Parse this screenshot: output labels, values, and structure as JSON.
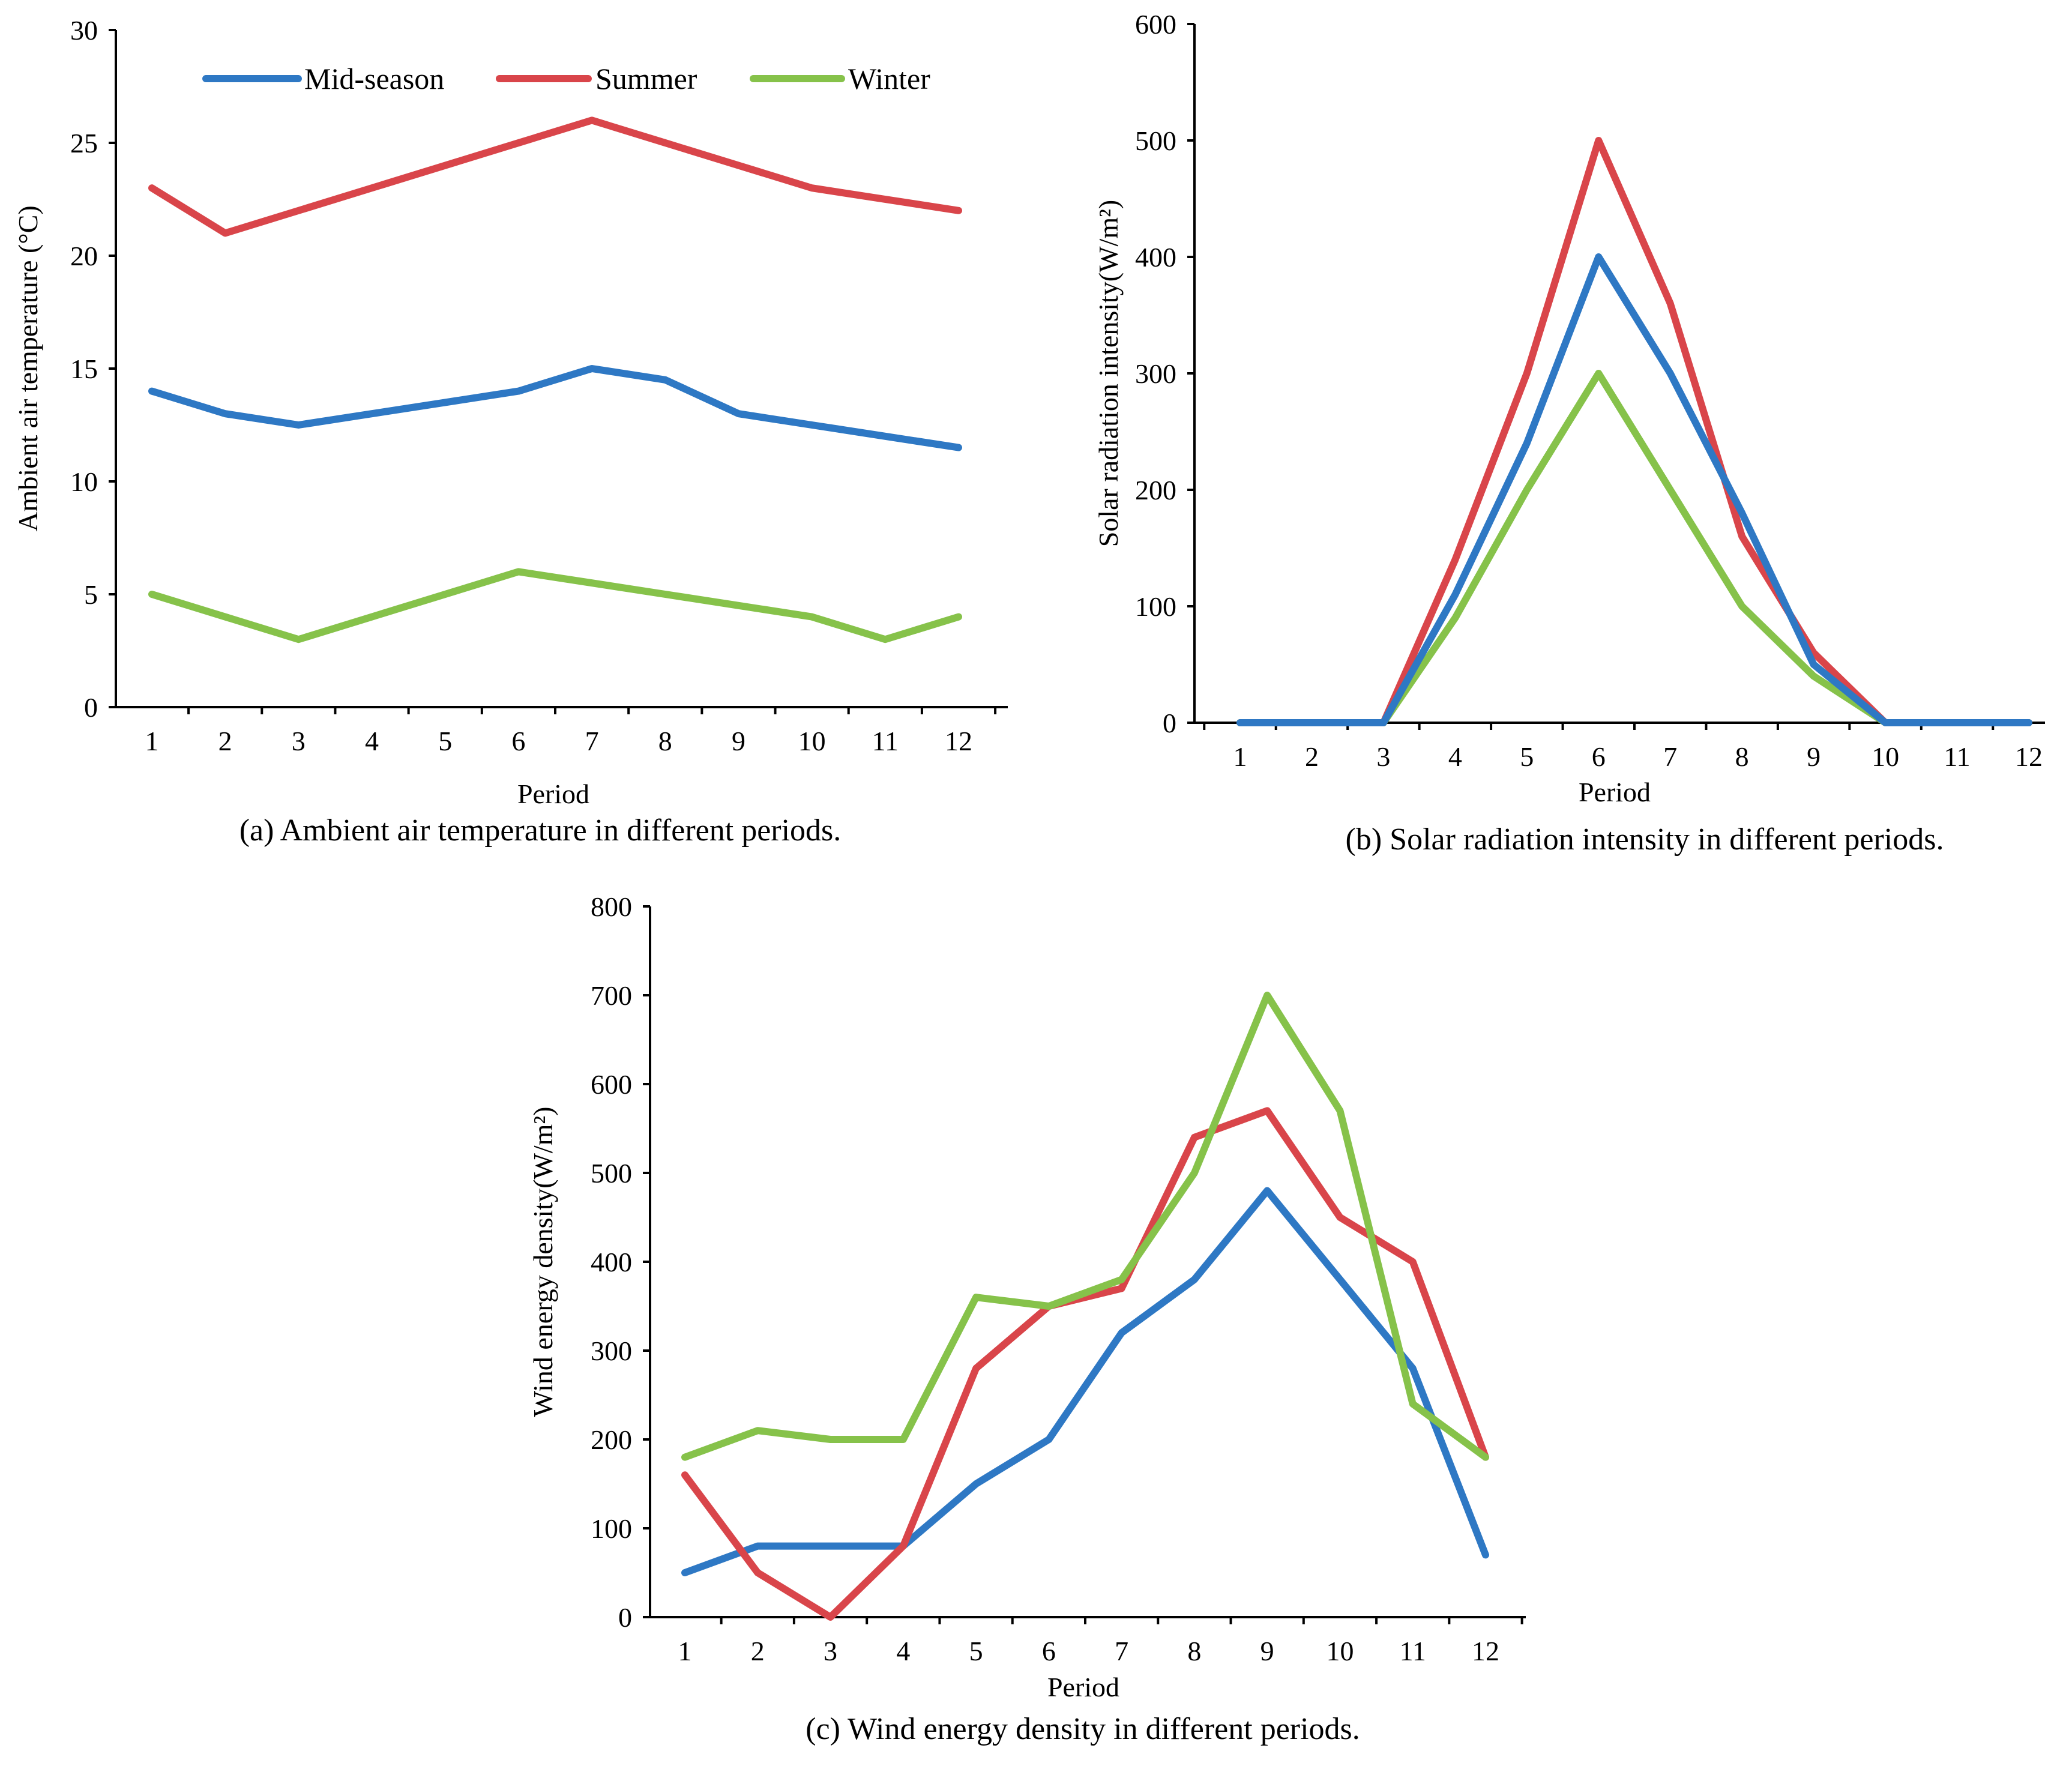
{
  "colors": {
    "mid_season": "#2e78c4",
    "summer": "#d9454a",
    "winter": "#86c24a"
  },
  "legend": [
    "Mid-season",
    "Summer",
    "Winter"
  ],
  "chart_data": [
    {
      "id": "a",
      "type": "line",
      "caption": "(a) Ambient air temperature in different periods.",
      "xlabel": "Period",
      "ylabel": "Ambient air temperature (°C)",
      "ylim": [
        0,
        30
      ],
      "yticks": [
        0,
        5,
        10,
        15,
        20,
        25,
        30
      ],
      "categories": [
        "1",
        "2",
        "3",
        "4",
        "5",
        "6",
        "7",
        "8",
        "9",
        "10",
        "11",
        "12"
      ],
      "legend_position": "top",
      "series": [
        {
          "name": "Mid-season",
          "values": [
            14,
            13,
            12.5,
            13,
            13.5,
            14,
            15,
            14.5,
            13,
            12.5,
            12,
            11.5
          ]
        },
        {
          "name": "Summer",
          "values": [
            23,
            21,
            22,
            23,
            24,
            25,
            26,
            25,
            24,
            23,
            22.5,
            22
          ]
        },
        {
          "name": "Winter",
          "values": [
            5,
            4,
            3,
            4,
            5,
            6,
            5.5,
            5,
            4.5,
            4,
            3,
            4
          ]
        }
      ]
    },
    {
      "id": "b",
      "type": "line",
      "caption": "(b) Solar radiation intensity in different periods.",
      "xlabel": "Period",
      "ylabel": "Solar radiation intensity(W/m²)",
      "ylim": [
        0,
        600
      ],
      "yticks": [
        0,
        100,
        200,
        300,
        400,
        500,
        600
      ],
      "categories": [
        "1",
        "2",
        "3",
        "4",
        "5",
        "6",
        "7",
        "8",
        "9",
        "10",
        "11",
        "12"
      ],
      "series": [
        {
          "name": "Summer",
          "values": [
            0,
            0,
            0,
            140,
            300,
            500,
            360,
            160,
            60,
            0,
            0,
            0
          ]
        },
        {
          "name": "Winter",
          "values": [
            0,
            0,
            0,
            90,
            200,
            300,
            200,
            100,
            40,
            0,
            0,
            0
          ]
        },
        {
          "name": "Mid-season",
          "values": [
            0,
            0,
            0,
            110,
            240,
            400,
            300,
            180,
            50,
            0,
            0,
            0
          ]
        }
      ]
    },
    {
      "id": "c",
      "type": "line",
      "caption": "(c) Wind energy density in different periods.",
      "xlabel": "Period",
      "ylabel": "Wind energy density(W/m²)",
      "ylim": [
        0,
        800
      ],
      "yticks": [
        0,
        100,
        200,
        300,
        400,
        500,
        600,
        700,
        800
      ],
      "categories": [
        "1",
        "2",
        "3",
        "4",
        "5",
        "6",
        "7",
        "8",
        "9",
        "10",
        "11",
        "12"
      ],
      "series": [
        {
          "name": "Mid-season",
          "values": [
            50,
            80,
            80,
            80,
            150,
            200,
            320,
            380,
            480,
            380,
            280,
            70
          ]
        },
        {
          "name": "Summer",
          "values": [
            160,
            50,
            0,
            80,
            280,
            350,
            370,
            540,
            570,
            450,
            400,
            180
          ]
        },
        {
          "name": "Winter",
          "values": [
            180,
            210,
            200,
            200,
            360,
            350,
            380,
            500,
            700,
            570,
            240,
            180
          ]
        }
      ]
    }
  ]
}
